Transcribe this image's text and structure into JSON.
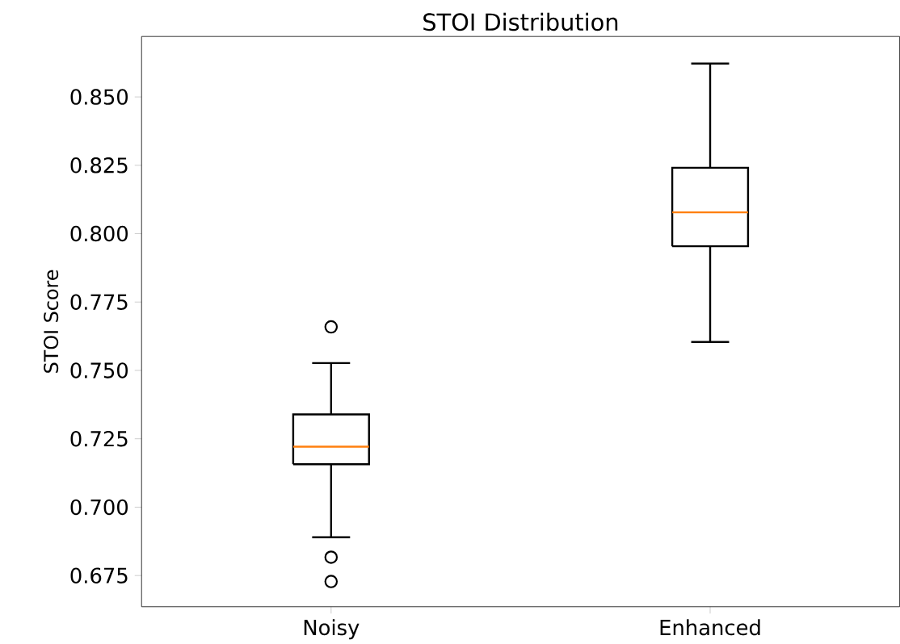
{
  "chart_data": {
    "type": "box",
    "title": "STOI Distribution",
    "ylabel": "STOI Score",
    "categories": [
      "Noisy",
      "Enhanced"
    ],
    "boxes": [
      {
        "low": 0.689,
        "q1": 0.7157,
        "median": 0.7221,
        "q3": 0.7339,
        "high": 0.7527,
        "outliers": [
          0.7659,
          0.6817,
          0.6728
        ]
      },
      {
        "low": 0.7604,
        "q1": 0.7954,
        "median": 0.8078,
        "q3": 0.8241,
        "high": 0.8622
      }
    ],
    "color": "#000000",
    "ylim": [
      0.6636,
      0.8721
    ],
    "yticks": [
      0.675,
      {
        "value": 0.7,
        "label": "0.700"
      },
      0.725,
      {
        "value": 0.75,
        "label": "0.750"
      },
      0.775,
      {
        "value": 0.8,
        "label": "0.800"
      },
      0.825,
      {
        "value": 0.85,
        "label": "0.850"
      }
    ],
    "grid": false
  }
}
